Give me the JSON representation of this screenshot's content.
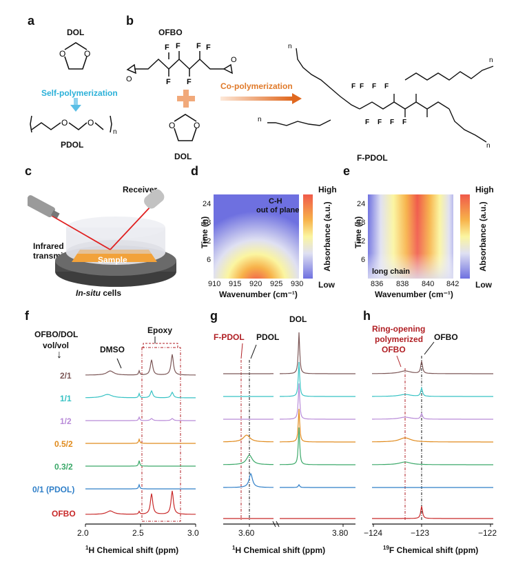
{
  "panels": {
    "a": "a",
    "b": "b",
    "c": "c",
    "d": "d",
    "e": "e",
    "f": "f",
    "g": "g",
    "h": "h"
  },
  "panel_a": {
    "monomer": "DOL",
    "arrow": "Self-polymerization",
    "product": "PDOL",
    "subscript": "n"
  },
  "panel_b": {
    "monomer1": "OFBO",
    "monomer2": "DOL",
    "arrow": "Co-polymerization",
    "product": "F-PDOL",
    "n": "n",
    "fluorine": "F"
  },
  "panel_c": {
    "receiver": "Receiver",
    "transmitter_line1": "Infrared",
    "transmitter_line2": "transmitter",
    "sample": "Sample",
    "cell_italic": "In-situ",
    "cell_rest": " cells"
  },
  "panel_d": {
    "annotation_line1": "C-H",
    "annotation_line2": "out of plane",
    "ylabel": "Time (h)",
    "xlabel": "Wavenumber (cm⁻¹)",
    "colorbar_label": "Absorbance (a.u.)",
    "colorbar_high": "High",
    "colorbar_low": "Low",
    "xticks": [
      "910",
      "915",
      "920",
      "925",
      "930"
    ],
    "yticks": [
      "24",
      "18",
      "12",
      "6"
    ]
  },
  "panel_e": {
    "annotation": "long chain",
    "ylabel": "Time (h)",
    "xlabel": "Wavenumber (cm⁻¹)",
    "colorbar_label": "Absorbance (a.u.)",
    "colorbar_high": "High",
    "colorbar_low": "Low",
    "xticks": [
      "836",
      "838",
      "840",
      "842"
    ],
    "yticks": [
      "24",
      "18",
      "12",
      "6"
    ]
  },
  "panel_f": {
    "header_line1": "OFBO/DOL",
    "header_line2": "vol/vol",
    "arrow": "↓",
    "dmso": "DMSO",
    "epoxy": "Epoxy",
    "xlabel_sup": "1",
    "xlabel": "H Chemical shift (ppm)",
    "xticks": [
      "2.0",
      "2.5",
      "3.0"
    ],
    "rows": [
      {
        "label": "2/1",
        "color": "#7b5656"
      },
      {
        "label": "1/1",
        "color": "#36c2c4"
      },
      {
        "label": "1/2",
        "color": "#b88ad8"
      },
      {
        "label": "0.5/2",
        "color": "#e08a1c"
      },
      {
        "label": "0.3/2",
        "color": "#3aa868"
      },
      {
        "label": "0/1 (PDOL)",
        "color": "#2f7fc8"
      },
      {
        "label": "OFBO",
        "color": "#c82828"
      }
    ]
  },
  "panel_g": {
    "fpdol": "F-PDOL",
    "pdol": "PDOL",
    "dol": "DOL",
    "xlabel_sup": "1",
    "xlabel": "H Chemical shift (ppm)",
    "xticks": [
      "3.60",
      "3.80"
    ]
  },
  "panel_h": {
    "annot_line1": "Ring-opening",
    "annot_line2": "polymerized",
    "annot_line3": "OFBO",
    "ofbo": "OFBO",
    "xlabel_sup": "19",
    "xlabel": "F Chemical shift (ppm)",
    "xticks": [
      "−124",
      "−123",
      "−122"
    ]
  },
  "colors": {
    "accent_red": "#b01e23",
    "self_poly": "#2ab0d8",
    "co_poly": "#e07a2a"
  }
}
